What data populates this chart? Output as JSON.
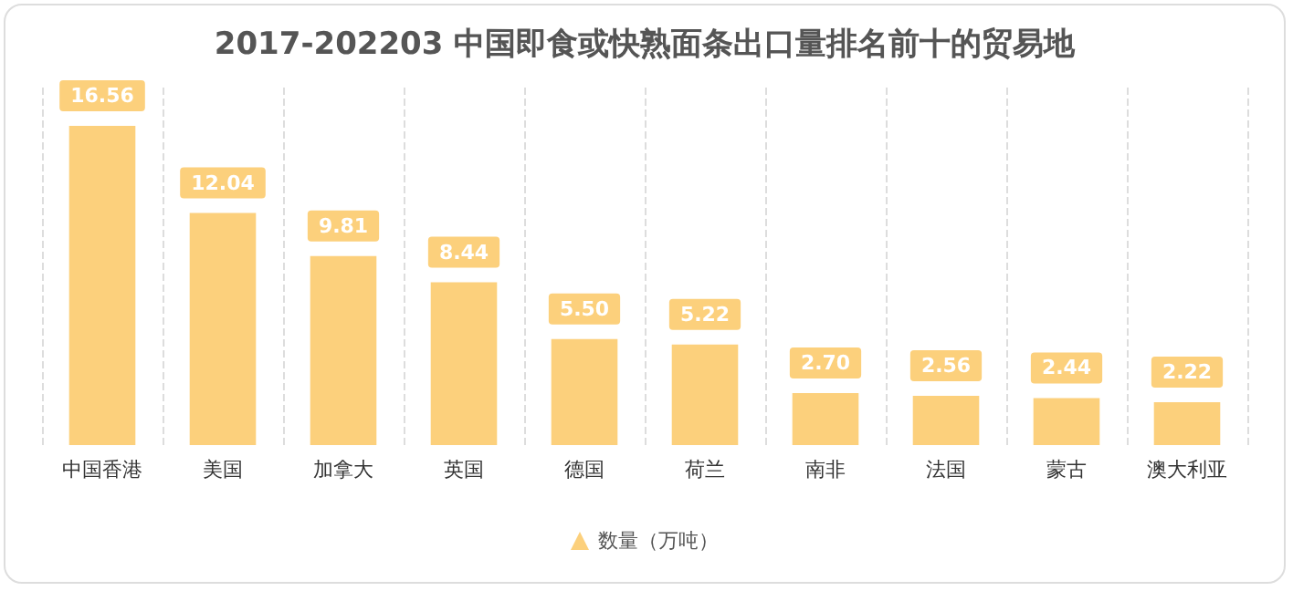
{
  "chart_data": {
    "type": "bar",
    "title": "2017-202203 中国即食或快熟面条出口量排名前十的贸易地",
    "categories": [
      "中国香港",
      "美国",
      "加拿大",
      "英国",
      "德国",
      "荷兰",
      "南非",
      "法国",
      "蒙古",
      "澳大利亚"
    ],
    "series": [
      {
        "name": "数量（万吨）",
        "color": "#fcd07c",
        "values": [
          16.56,
          12.04,
          9.81,
          8.44,
          5.5,
          5.22,
          2.7,
          2.56,
          2.44,
          2.22
        ],
        "value_labels": [
          "16.56",
          "12.04",
          "9.81",
          "8.44",
          "5.50",
          "5.22",
          "2.70",
          "2.56",
          "2.44",
          "2.22"
        ]
      }
    ],
    "grid": "x",
    "legend": "bottom"
  }
}
